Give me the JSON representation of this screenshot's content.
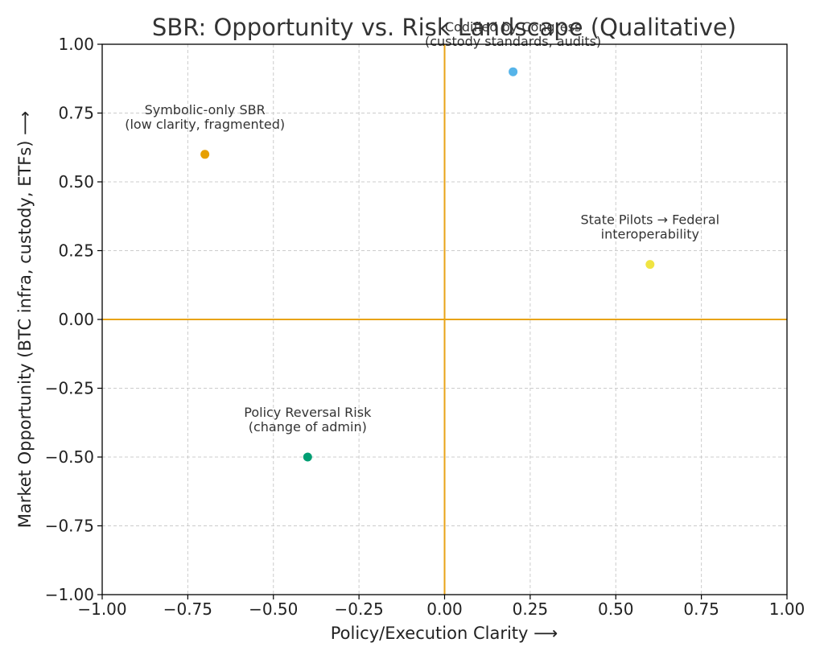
{
  "chart_data": {
    "type": "scatter",
    "title": "SBR: Opportunity vs. Risk Landscape (Qualitative)",
    "xlabel": "Policy/Execution Clarity  ⟶",
    "ylabel": "Market Opportunity (BTC infra, custody, ETFs)  ⟶",
    "xlim": [
      -1.0,
      1.0
    ],
    "ylim": [
      -1.0,
      1.0
    ],
    "xticks": [
      "−1.00",
      "−0.75",
      "−0.50",
      "−0.25",
      "0.00",
      "0.25",
      "0.50",
      "0.75",
      "1.00"
    ],
    "yticks": [
      "−1.00",
      "−0.75",
      "−0.50",
      "−0.25",
      "0.00",
      "0.25",
      "0.50",
      "0.75",
      "1.00"
    ],
    "grid": true,
    "reference_lines": {
      "x": 0,
      "y": 0,
      "color": "#E8A317"
    },
    "points": [
      {
        "x": -0.7,
        "y": 0.6,
        "color": "#E69F00",
        "label": [
          "Symbolic-only SBR",
          "(low clarity, fragmented)"
        ]
      },
      {
        "x": 0.2,
        "y": 0.9,
        "color": "#56B4E9",
        "label": [
          "Codified by Congress",
          "(custody standards, audits)"
        ]
      },
      {
        "x": 0.6,
        "y": 0.2,
        "color": "#F0E442",
        "label": [
          "State Pilots → Federal",
          "interoperability"
        ]
      },
      {
        "x": -0.4,
        "y": -0.5,
        "color": "#009E73",
        "label": [
          "Policy Reversal Risk",
          "(change of admin)"
        ]
      }
    ]
  }
}
